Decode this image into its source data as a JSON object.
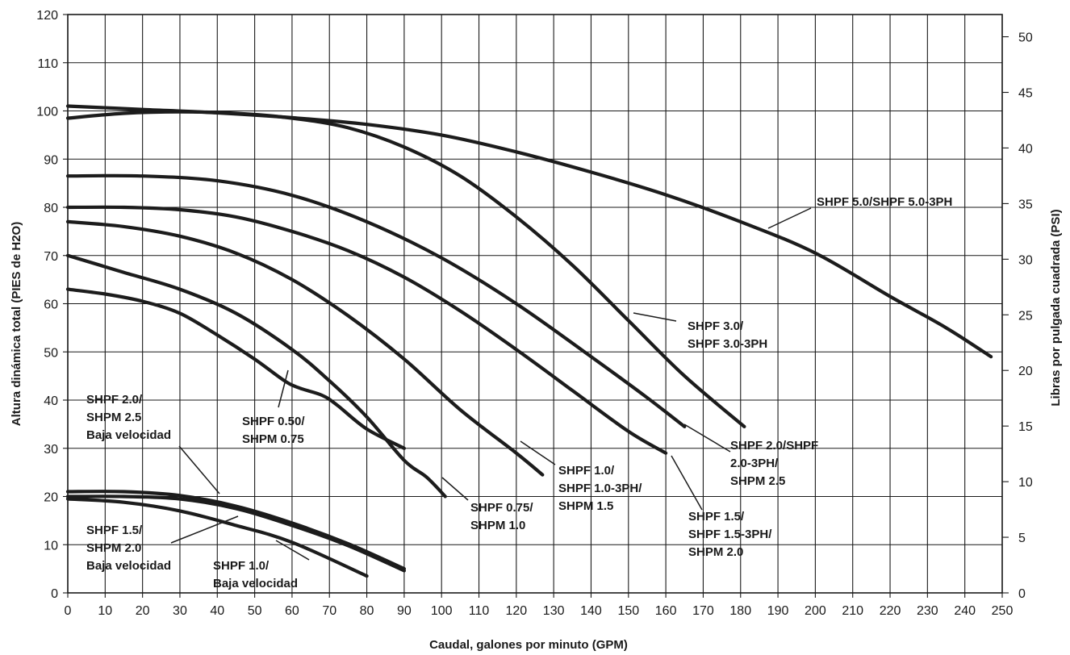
{
  "chart_data": {
    "type": "line",
    "xlabel": "Caudal, galones por minuto (GPM)",
    "ylabel": "Altura dinámica total (PIES de H2O)",
    "y2label": "Libras por pulgada cuadrada (PSI)",
    "xlim": [
      0,
      250
    ],
    "ylim": [
      0,
      120
    ],
    "y2lim": [
      0,
      52
    ],
    "x_ticks": [
      0,
      10,
      20,
      30,
      40,
      50,
      60,
      70,
      80,
      90,
      100,
      110,
      120,
      130,
      140,
      150,
      160,
      170,
      180,
      190,
      200,
      210,
      220,
      230,
      240,
      250
    ],
    "y_ticks": [
      0,
      10,
      20,
      30,
      40,
      50,
      60,
      70,
      80,
      90,
      100,
      110,
      120
    ],
    "y2_ticks": [
      0,
      5,
      10,
      15,
      20,
      25,
      30,
      35,
      40,
      45,
      50
    ],
    "grid": true,
    "series": [
      {
        "name": "SHPF 5.0/SHPF 5.0-3PH",
        "label_lines": [
          "SHPF 5.0/SHPF 5.0-3PH"
        ],
        "x": [
          0,
          20,
          40,
          60,
          80,
          100,
          120,
          140,
          160,
          180,
          200,
          220,
          235,
          247
        ],
        "y": [
          101,
          100.3,
          99.6,
          98.6,
          97.2,
          95,
          91.5,
          87.3,
          82.6,
          77,
          70.5,
          61.5,
          55,
          49
        ]
      },
      {
        "name": "SHPF 3.0/SHPF 3.0-3PH",
        "label_lines": [
          "SHPF 3.0/",
          "SHPF 3.0-3PH"
        ],
        "x": [
          0,
          15,
          30,
          45,
          60,
          75,
          90,
          105,
          120,
          135,
          150,
          165,
          181
        ],
        "y": [
          98.5,
          99.5,
          99.8,
          99.5,
          98.5,
          96.5,
          92.5,
          86.5,
          78,
          68,
          56.5,
          45,
          34.5
        ]
      },
      {
        "name": "SHPF 2.0/SHPF 2.0-3PH/SHPM 2.5",
        "label_lines": [
          "SHPF 2.0/SHPF",
          "2.0-3PH/",
          "SHPM 2.5"
        ],
        "x": [
          0,
          20,
          40,
          60,
          80,
          100,
          120,
          140,
          155,
          165
        ],
        "y": [
          86.5,
          86.5,
          85.5,
          82.5,
          77,
          69.5,
          60,
          49,
          40.5,
          34.5
        ]
      },
      {
        "name": "SHPF 1.5/SHPF 1.5-3PH/SHPM 2.0",
        "label_lines": [
          "SHPF 1.5/",
          "SHPF 1.5-3PH/",
          "SHPM 2.0"
        ],
        "x": [
          0,
          15,
          30,
          45,
          60,
          75,
          90,
          105,
          120,
          135,
          150,
          160
        ],
        "y": [
          80,
          80,
          79.5,
          78,
          75,
          71,
          65.5,
          58.5,
          50.5,
          42,
          33.5,
          29
        ]
      },
      {
        "name": "SHPF 1.0/SHPF 1.0-3PH/SHPM 1.5",
        "label_lines": [
          "SHPF 1.0/",
          "SHPF 1.0-3PH/",
          "SHPM 1.5"
        ],
        "x": [
          0,
          15,
          30,
          45,
          60,
          75,
          90,
          105,
          120,
          127
        ],
        "y": [
          77,
          76,
          74,
          70.5,
          65,
          57.5,
          48.5,
          38,
          29,
          24.5
        ]
      },
      {
        "name": "SHPF 0.75/SHPM 1.0",
        "label_lines": [
          "SHPF 0.75/",
          "SHPM 1.0"
        ],
        "x": [
          0,
          15,
          30,
          45,
          60,
          70,
          80,
          90,
          96,
          101
        ],
        "y": [
          70,
          66.5,
          63,
          58,
          50.5,
          44,
          36.5,
          27.5,
          24,
          20
        ]
      },
      {
        "name": "SHPF 0.50/SHPM 0.75",
        "label_lines": [
          "SHPF 0.50/",
          "SHPM 0.75"
        ],
        "x": [
          0,
          10,
          20,
          30,
          40,
          50,
          58,
          62,
          68,
          72,
          80,
          90
        ],
        "y": [
          63,
          62,
          60.5,
          58,
          53.5,
          48.5,
          44,
          42.5,
          41,
          39,
          34,
          30
        ]
      },
      {
        "name": "SHPF 2.0/SHPM 2.5 Baja velocidad",
        "label_lines": [
          "SHPF 2.0/",
          "SHPM 2.5",
          "Baja velocidad"
        ],
        "x": [
          0,
          15,
          30,
          45,
          60,
          75,
          90
        ],
        "y": [
          21,
          21,
          20.2,
          18,
          14.5,
          10.2,
          5
        ]
      },
      {
        "name": "SHPF 1.5/SHPM 2.0 Baja velocidad",
        "label_lines": [
          "SHPF 1.5/",
          "SHPM 2.0",
          "Baja velocidad"
        ],
        "x": [
          0,
          15,
          30,
          45,
          60,
          75,
          90
        ],
        "y": [
          20,
          20,
          19.5,
          17.5,
          14,
          9.8,
          4.6
        ]
      },
      {
        "name": "SHPF 1.0/Baja velocidad",
        "label_lines": [
          "SHPF 1.0/",
          "Baja velocidad"
        ],
        "x": [
          0,
          15,
          30,
          45,
          60,
          80
        ],
        "y": [
          19.5,
          18.8,
          17,
          14,
          10.5,
          3.5
        ]
      }
    ]
  }
}
